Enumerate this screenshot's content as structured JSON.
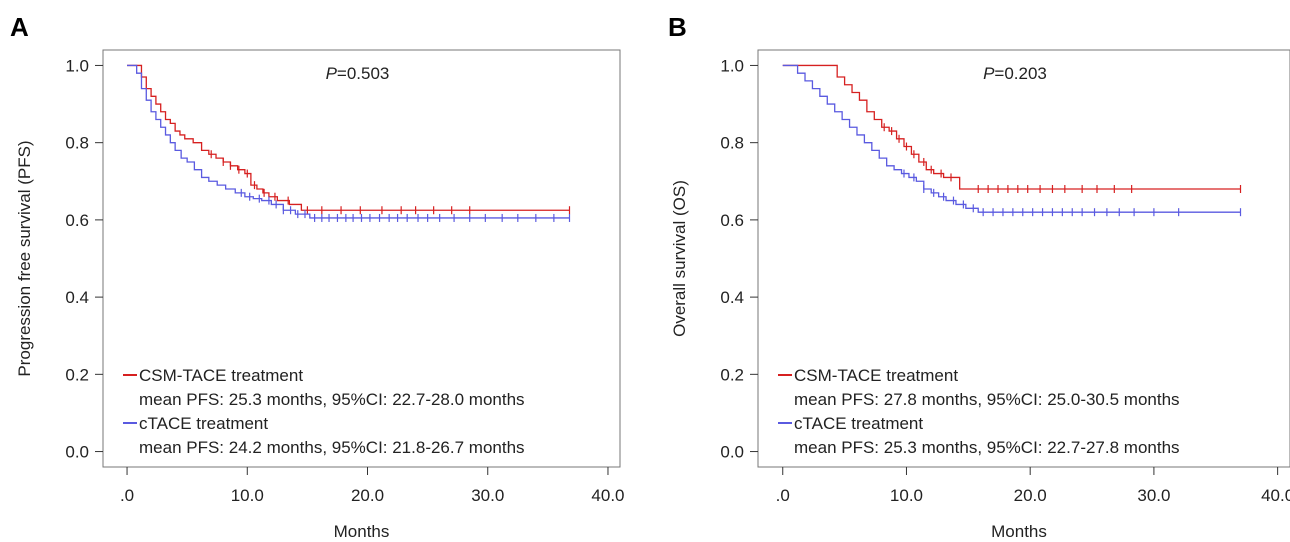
{
  "chart_data": [
    {
      "type": "line",
      "panel_label": "A",
      "annotation": {
        "italic": "P",
        "rest": "=0.503"
      },
      "xlabel": "Months",
      "ylabel": "Progression free survival (PFS)",
      "xlim": [
        -2,
        41
      ],
      "ylim": [
        -0.04,
        1.04
      ],
      "x_ticks": [
        0,
        10,
        20,
        30,
        40
      ],
      "x_tick_labels": [
        ".0",
        "10.0",
        "20.0",
        "30.0",
        "40.0"
      ],
      "y_ticks": [
        0,
        0.2,
        0.4,
        0.6,
        0.8,
        1.0
      ],
      "y_tick_labels": [
        "0.0",
        "0.2",
        "0.4",
        "0.6",
        "0.8",
        "1.0"
      ],
      "grid": false,
      "legend_position": "bottom-left",
      "series": [
        {
          "name": "CSM-TACE treatment",
          "detail": "mean PFS: 25.3 months, 95%CI: 22.7-28.0 months",
          "color": "#d62020",
          "x": [
            0,
            0.8,
            1.2,
            1.6,
            2.0,
            2.4,
            2.8,
            3.2,
            3.6,
            4.0,
            4.4,
            4.8,
            5.5,
            6.2,
            6.8,
            7.4,
            8.0,
            8.6,
            9.2,
            9.8,
            10.3,
            10.8,
            11.3,
            11.8,
            12.5,
            13.5,
            14.5,
            36.8
          ],
          "y": [
            1.0,
            1.0,
            0.97,
            0.94,
            0.92,
            0.9,
            0.88,
            0.86,
            0.85,
            0.83,
            0.82,
            0.81,
            0.8,
            0.78,
            0.77,
            0.76,
            0.75,
            0.74,
            0.73,
            0.72,
            0.69,
            0.68,
            0.67,
            0.66,
            0.65,
            0.64,
            0.625,
            0.625
          ],
          "censor_x": [
            7.0,
            8.0,
            8.6,
            9.3,
            10.0,
            10.6,
            11.4,
            12.3,
            13.4,
            15.0,
            16.2,
            17.8,
            19.4,
            21.2,
            22.8,
            24.0,
            25.5,
            27.0,
            28.5,
            36.8
          ]
        },
        {
          "name": "cTACE treatment",
          "detail": "mean PFS: 24.2 months, 95%CI: 21.8-26.7 months",
          "color": "#5a5ae0",
          "x": [
            0,
            0.8,
            1.2,
            1.6,
            2.0,
            2.4,
            2.8,
            3.2,
            3.6,
            4.0,
            4.5,
            5.0,
            5.6,
            6.2,
            6.8,
            7.5,
            8.2,
            9.0,
            9.8,
            10.5,
            11.2,
            12.0,
            13.0,
            14.0,
            15.2,
            36.8
          ],
          "y": [
            1.0,
            0.98,
            0.94,
            0.91,
            0.88,
            0.86,
            0.84,
            0.82,
            0.8,
            0.78,
            0.76,
            0.75,
            0.73,
            0.71,
            0.7,
            0.69,
            0.68,
            0.67,
            0.66,
            0.655,
            0.65,
            0.64,
            0.625,
            0.615,
            0.605,
            0.605
          ],
          "censor_x": [
            9.5,
            10.2,
            11.0,
            11.8,
            12.4,
            13.0,
            13.6,
            14.2,
            14.8,
            15.6,
            16.2,
            16.8,
            17.5,
            18.2,
            18.8,
            19.5,
            20.2,
            21.0,
            21.8,
            22.5,
            23.3,
            24.2,
            25.0,
            26.0,
            27.2,
            28.5,
            29.8,
            31.2,
            32.5,
            34.0,
            35.5,
            36.8
          ]
        }
      ]
    },
    {
      "type": "line",
      "panel_label": "B",
      "annotation": {
        "italic": "P",
        "rest": "=0.203"
      },
      "xlabel": "Months",
      "ylabel": "Overall survival (OS)",
      "xlim": [
        -2,
        41
      ],
      "ylim": [
        -0.04,
        1.04
      ],
      "x_ticks": [
        0,
        10,
        20,
        30,
        40
      ],
      "x_tick_labels": [
        ".0",
        "10.0",
        "20.0",
        "30.0",
        "40.0"
      ],
      "y_ticks": [
        0,
        0.2,
        0.4,
        0.6,
        0.8,
        1.0
      ],
      "y_tick_labels": [
        "0.0",
        "0.2",
        "0.4",
        "0.6",
        "0.8",
        "1.0"
      ],
      "grid": false,
      "legend_position": "bottom-left",
      "series": [
        {
          "name": "CSM-TACE treatment",
          "detail": "mean PFS: 27.8 months, 95%CI: 25.0-30.5 months",
          "color": "#d62020",
          "x": [
            0,
            3.8,
            4.4,
            5.0,
            5.6,
            6.2,
            6.8,
            7.4,
            8.0,
            8.6,
            9.2,
            9.8,
            10.4,
            11.0,
            11.6,
            12.2,
            13.0,
            14.3,
            37.0
          ],
          "y": [
            1.0,
            1.0,
            0.97,
            0.95,
            0.93,
            0.91,
            0.88,
            0.86,
            0.84,
            0.83,
            0.81,
            0.79,
            0.77,
            0.75,
            0.73,
            0.72,
            0.71,
            0.68,
            0.68
          ],
          "censor_x": [
            8.2,
            8.8,
            9.4,
            10.0,
            10.6,
            11.4,
            12.0,
            12.8,
            13.6,
            15.8,
            16.6,
            17.4,
            18.2,
            19.0,
            19.8,
            20.8,
            21.8,
            22.8,
            24.2,
            25.4,
            26.8,
            28.2,
            37.0
          ]
        },
        {
          "name": "cTACE treatment",
          "detail": "mean PFS: 25.3 months, 95%CI: 22.7-27.8 months",
          "color": "#5a5ae0",
          "x": [
            0,
            1.2,
            1.8,
            2.4,
            3.0,
            3.6,
            4.2,
            4.8,
            5.4,
            6.0,
            6.6,
            7.2,
            7.8,
            8.4,
            9.0,
            9.6,
            10.2,
            10.8,
            11.4,
            12.0,
            12.6,
            13.2,
            14.0,
            14.8,
            15.8,
            37.0
          ],
          "y": [
            1.0,
            0.98,
            0.96,
            0.94,
            0.92,
            0.9,
            0.88,
            0.86,
            0.84,
            0.82,
            0.8,
            0.78,
            0.76,
            0.74,
            0.73,
            0.72,
            0.71,
            0.7,
            0.68,
            0.67,
            0.66,
            0.65,
            0.64,
            0.63,
            0.62,
            0.62
          ],
          "censor_x": [
            9.8,
            10.6,
            11.4,
            12.2,
            13.0,
            13.8,
            14.6,
            15.4,
            16.2,
            17.0,
            17.8,
            18.6,
            19.4,
            20.2,
            21.0,
            21.8,
            22.6,
            23.4,
            24.2,
            25.2,
            26.2,
            27.2,
            28.4,
            30.0,
            32.0,
            37.0
          ]
        }
      ]
    }
  ]
}
